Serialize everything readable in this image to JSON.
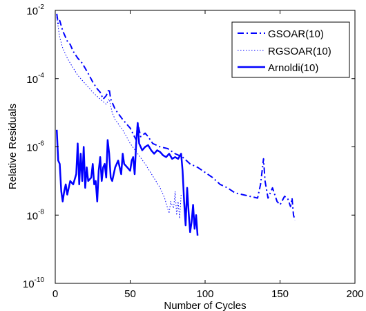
{
  "chart_data": {
    "type": "line",
    "title": "",
    "xlabel": "Number of Cycles",
    "ylabel": "Relative Residuals",
    "xlim": [
      0,
      200
    ],
    "ylim_exponent": [
      -10,
      -2
    ],
    "yscale": "log",
    "grid": false,
    "legend_position": "top-right",
    "x_ticks": [
      "0",
      "50",
      "100",
      "150",
      "200"
    ],
    "y_ticks": [
      {
        "base": "10",
        "exp": "-10",
        "value": -10
      },
      {
        "base": "10",
        "exp": "-8",
        "value": -8
      },
      {
        "base": "10",
        "exp": "-6",
        "value": -6
      },
      {
        "base": "10",
        "exp": "-4",
        "value": -4
      },
      {
        "base": "10",
        "exp": "-2",
        "value": -2
      }
    ],
    "series": [
      {
        "name": "GSOAR(10)",
        "style": "dashdot",
        "color": "#0000ff",
        "points": [
          [
            1,
            -2.1
          ],
          [
            2,
            -2.4
          ],
          [
            3,
            -2.3
          ],
          [
            5,
            -2.6
          ],
          [
            8,
            -2.9
          ],
          [
            10,
            -3.0
          ],
          [
            12,
            -3.2
          ],
          [
            15,
            -3.4
          ],
          [
            18,
            -3.55
          ],
          [
            20,
            -3.7
          ],
          [
            22,
            -3.85
          ],
          [
            25,
            -4.1
          ],
          [
            28,
            -4.3
          ],
          [
            30,
            -4.4
          ],
          [
            32,
            -4.6
          ],
          [
            34,
            -4.5
          ],
          [
            36,
            -4.3
          ],
          [
            37,
            -4.6
          ],
          [
            40,
            -4.9
          ],
          [
            45,
            -5.2
          ],
          [
            50,
            -5.45
          ],
          [
            54,
            -5.8
          ],
          [
            55,
            -5.3
          ],
          [
            57,
            -5.7
          ],
          [
            60,
            -5.6
          ],
          [
            62,
            -5.7
          ],
          [
            65,
            -5.9
          ],
          [
            70,
            -6.0
          ],
          [
            75,
            -6.05
          ],
          [
            80,
            -6.2
          ],
          [
            85,
            -6.3
          ],
          [
            90,
            -6.5
          ],
          [
            95,
            -6.6
          ],
          [
            100,
            -6.75
          ],
          [
            105,
            -6.9
          ],
          [
            110,
            -7.1
          ],
          [
            115,
            -7.2
          ],
          [
            120,
            -7.35
          ],
          [
            125,
            -7.4
          ],
          [
            130,
            -7.45
          ],
          [
            135,
            -7.5
          ],
          [
            137,
            -7.1
          ],
          [
            139,
            -6.35
          ],
          [
            140,
            -7.0
          ],
          [
            142,
            -7.5
          ],
          [
            145,
            -7.2
          ],
          [
            148,
            -7.6
          ],
          [
            150,
            -7.7
          ],
          [
            153,
            -7.45
          ],
          [
            155,
            -7.5
          ],
          [
            157,
            -7.75
          ],
          [
            158,
            -7.5
          ],
          [
            159,
            -8.0
          ],
          [
            160,
            -8.15
          ]
        ]
      },
      {
        "name": "RGSOAR(10)",
        "style": "dotted",
        "color": "#0000ff",
        "points": [
          [
            1,
            -2.2
          ],
          [
            3,
            -2.8
          ],
          [
            5,
            -3.1
          ],
          [
            8,
            -3.4
          ],
          [
            10,
            -3.55
          ],
          [
            15,
            -3.9
          ],
          [
            20,
            -4.15
          ],
          [
            25,
            -4.4
          ],
          [
            30,
            -4.6
          ],
          [
            34,
            -4.75
          ],
          [
            36,
            -4.6
          ],
          [
            38,
            -5.0
          ],
          [
            40,
            -5.2
          ],
          [
            45,
            -5.5
          ],
          [
            50,
            -5.9
          ],
          [
            55,
            -6.2
          ],
          [
            60,
            -6.5
          ],
          [
            65,
            -6.85
          ],
          [
            70,
            -7.2
          ],
          [
            73,
            -7.5
          ],
          [
            76,
            -7.95
          ],
          [
            77,
            -7.6
          ],
          [
            79,
            -7.8
          ],
          [
            80,
            -7.3
          ],
          [
            81,
            -8.0
          ],
          [
            82,
            -7.6
          ],
          [
            83,
            -8.1
          ],
          [
            84,
            -7.4
          ]
        ]
      },
      {
        "name": "Arnoldi(10)",
        "style": "solid",
        "color": "#0000ff",
        "points": [
          [
            1,
            -5.5
          ],
          [
            2,
            -6.4
          ],
          [
            3,
            -6.5
          ],
          [
            4,
            -7.3
          ],
          [
            5,
            -7.6
          ],
          [
            6,
            -7.3
          ],
          [
            7,
            -7.1
          ],
          [
            8,
            -7.4
          ],
          [
            10,
            -7.0
          ],
          [
            12,
            -7.1
          ],
          [
            14,
            -6.8
          ],
          [
            15,
            -5.9
          ],
          [
            16,
            -7.1
          ],
          [
            17,
            -6.2
          ],
          [
            18,
            -7.0
          ],
          [
            19,
            -6.0
          ],
          [
            20,
            -7.2
          ],
          [
            21,
            -6.6
          ],
          [
            22,
            -7.0
          ],
          [
            24,
            -6.9
          ],
          [
            25,
            -6.5
          ],
          [
            26,
            -7.1
          ],
          [
            27,
            -7.0
          ],
          [
            28,
            -7.6
          ],
          [
            29,
            -6.7
          ],
          [
            30,
            -6.3
          ],
          [
            31,
            -7.0
          ],
          [
            32,
            -6.6
          ],
          [
            33,
            -6.5
          ],
          [
            34,
            -6.9
          ],
          [
            35,
            -5.8
          ],
          [
            36,
            -6.2
          ],
          [
            37,
            -6.9
          ],
          [
            38,
            -7.0
          ],
          [
            40,
            -6.6
          ],
          [
            42,
            -6.4
          ],
          [
            44,
            -6.8
          ],
          [
            45,
            -6.2
          ],
          [
            46,
            -6.5
          ],
          [
            48,
            -6.6
          ],
          [
            50,
            -6.7
          ],
          [
            51,
            -6.4
          ],
          [
            52,
            -6.3
          ],
          [
            53,
            -6.8
          ],
          [
            54,
            -5.9
          ],
          [
            55,
            -5.3
          ],
          [
            56,
            -5.9
          ],
          [
            58,
            -6.1
          ],
          [
            60,
            -6.0
          ],
          [
            62,
            -5.95
          ],
          [
            64,
            -6.1
          ],
          [
            66,
            -6.2
          ],
          [
            68,
            -6.1
          ],
          [
            70,
            -6.15
          ],
          [
            72,
            -6.25
          ],
          [
            74,
            -6.3
          ],
          [
            76,
            -6.2
          ],
          [
            78,
            -6.35
          ],
          [
            80,
            -6.3
          ],
          [
            82,
            -6.35
          ],
          [
            84,
            -6.2
          ],
          [
            85,
            -6.7
          ],
          [
            86,
            -7.6
          ],
          [
            87,
            -8.3
          ],
          [
            88,
            -7.2
          ],
          [
            89,
            -7.9
          ],
          [
            90,
            -8.5
          ],
          [
            91,
            -8.2
          ],
          [
            92,
            -7.7
          ],
          [
            93,
            -8.4
          ],
          [
            94,
            -8.0
          ],
          [
            95,
            -8.6
          ]
        ]
      }
    ]
  }
}
